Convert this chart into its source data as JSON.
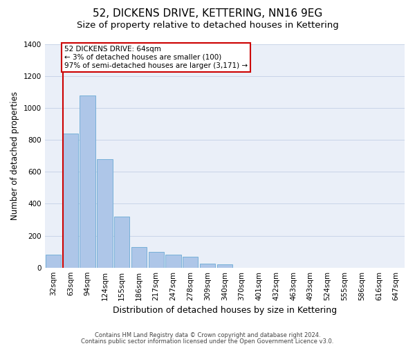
{
  "title": "52, DICKENS DRIVE, KETTERING, NN16 9EG",
  "subtitle": "Size of property relative to detached houses in Kettering",
  "xlabel": "Distribution of detached houses by size in Kettering",
  "ylabel": "Number of detached properties",
  "categories": [
    "32sqm",
    "63sqm",
    "94sqm",
    "124sqm",
    "155sqm",
    "186sqm",
    "217sqm",
    "247sqm",
    "278sqm",
    "309sqm",
    "340sqm",
    "370sqm",
    "401sqm",
    "432sqm",
    "463sqm",
    "493sqm",
    "524sqm",
    "555sqm",
    "586sqm",
    "616sqm",
    "647sqm"
  ],
  "values": [
    80,
    840,
    1080,
    680,
    320,
    130,
    100,
    80,
    70,
    25,
    20,
    0,
    0,
    0,
    0,
    0,
    0,
    0,
    0,
    0,
    0
  ],
  "bar_color": "#aec6e8",
  "bar_edge_color": "#6aaad4",
  "grid_color": "#c8d4e8",
  "background_color": "#eaeff8",
  "vline_x_index": 1,
  "vline_color": "#cc0000",
  "annotation_text": "52 DICKENS DRIVE: 64sqm\n← 3% of detached houses are smaller (100)\n97% of semi-detached houses are larger (3,171) →",
  "annotation_box_color": "#ffffff",
  "annotation_box_edge": "#cc0000",
  "ylim": [
    0,
    1400
  ],
  "yticks": [
    0,
    200,
    400,
    600,
    800,
    1000,
    1200,
    1400
  ],
  "footer1": "Contains HM Land Registry data © Crown copyright and database right 2024.",
  "footer2": "Contains public sector information licensed under the Open Government Licence v3.0.",
  "title_fontsize": 11,
  "subtitle_fontsize": 9.5,
  "tick_fontsize": 7.5,
  "ylabel_fontsize": 8.5,
  "xlabel_fontsize": 9,
  "annotation_fontsize": 7.5,
  "footer_fontsize": 6
}
